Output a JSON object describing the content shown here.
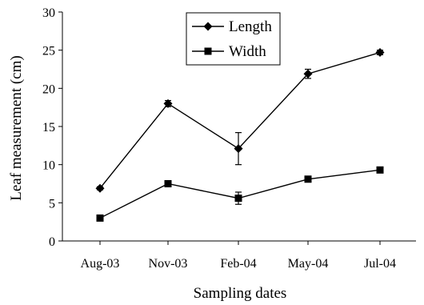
{
  "chart_data": {
    "type": "line",
    "title": "",
    "xlabel": "Sampling dates",
    "ylabel": "Leaf measurement (cm)",
    "categories": [
      "Aug-03",
      "Nov-03",
      "Feb-04",
      "May-04",
      "Jul-04"
    ],
    "ylim": [
      0,
      30
    ],
    "yticks": [
      0,
      5,
      10,
      15,
      20,
      25,
      30
    ],
    "grid": false,
    "legend_position": "top-center",
    "series": [
      {
        "name": "Length",
        "marker": "diamond",
        "color": "#000000",
        "values": [
          6.9,
          18.0,
          12.1,
          21.9,
          24.7
        ],
        "errors": [
          0.2,
          0.4,
          2.1,
          0.6,
          0.3
        ]
      },
      {
        "name": "Width",
        "marker": "square",
        "color": "#000000",
        "values": [
          3.0,
          7.5,
          5.6,
          8.1,
          9.3
        ],
        "errors": [
          0.2,
          0.2,
          0.8,
          0.2,
          0.2
        ]
      }
    ]
  }
}
